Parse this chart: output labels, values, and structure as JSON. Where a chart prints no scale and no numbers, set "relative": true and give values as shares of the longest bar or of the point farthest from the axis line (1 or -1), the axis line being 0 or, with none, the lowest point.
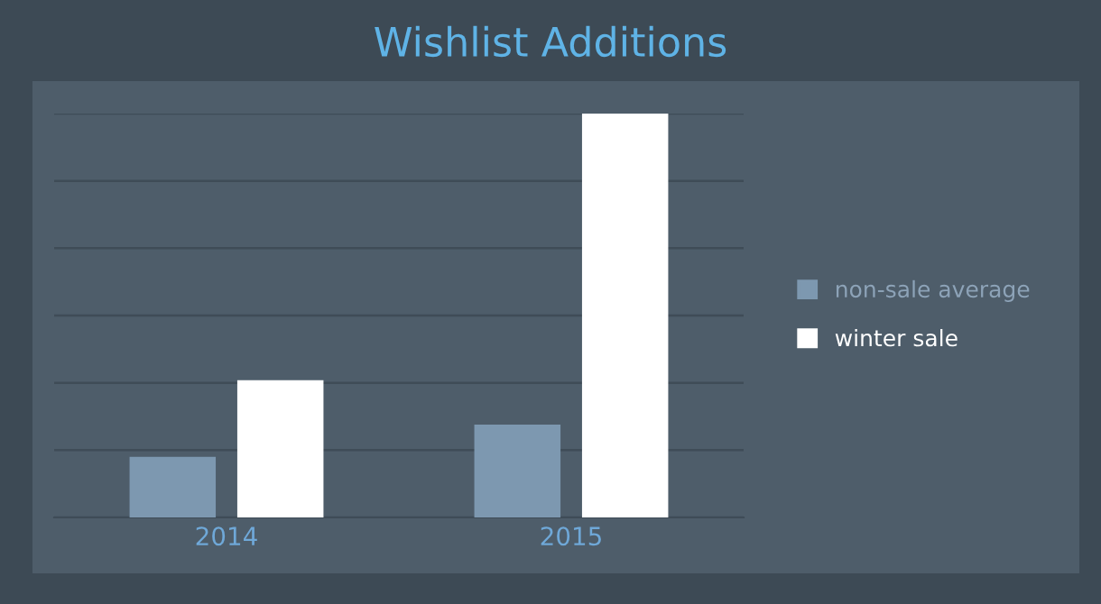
{
  "chart_data": {
    "type": "bar",
    "title": "Wishlist Additions",
    "relative": true,
    "categories": [
      "2014",
      "2015"
    ],
    "series": [
      {
        "name": "non-sale average",
        "color": "#7d98b0",
        "values": [
          0.15,
          0.23
        ]
      },
      {
        "name": "winter sale",
        "color": "#ffffff",
        "values": [
          0.34,
          1.0
        ]
      }
    ],
    "grid": "y",
    "legend": "right"
  }
}
